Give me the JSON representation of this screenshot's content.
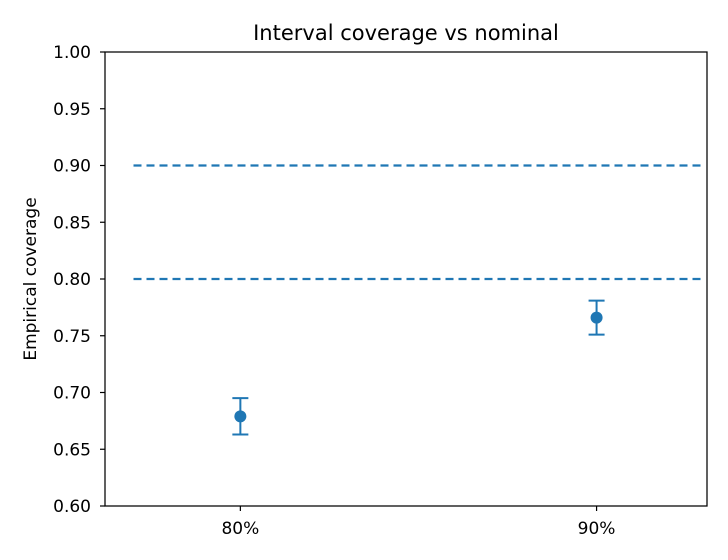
{
  "chart_data": {
    "type": "scatter",
    "title": "Interval coverage vs nominal",
    "xlabel": "",
    "ylabel": "Empirical coverage",
    "categories": [
      "80%",
      "90%"
    ],
    "ylim": [
      0.6,
      1.0
    ],
    "yticks": [
      "0.60",
      "0.65",
      "0.70",
      "0.75",
      "0.80",
      "0.85",
      "0.90",
      "0.95",
      "1.00"
    ],
    "grid": false,
    "series": [
      {
        "values": [
          0.679,
          0.766
        ],
        "err_low": [
          0.663,
          0.751
        ],
        "err_high": [
          0.695,
          0.781
        ],
        "color": "#1f77b4"
      }
    ],
    "reference_lines": [
      {
        "y": 0.8,
        "style": "dashed",
        "color": "#1f77b4"
      },
      {
        "y": 0.9,
        "style": "dashed",
        "color": "#1f77b4"
      }
    ]
  }
}
